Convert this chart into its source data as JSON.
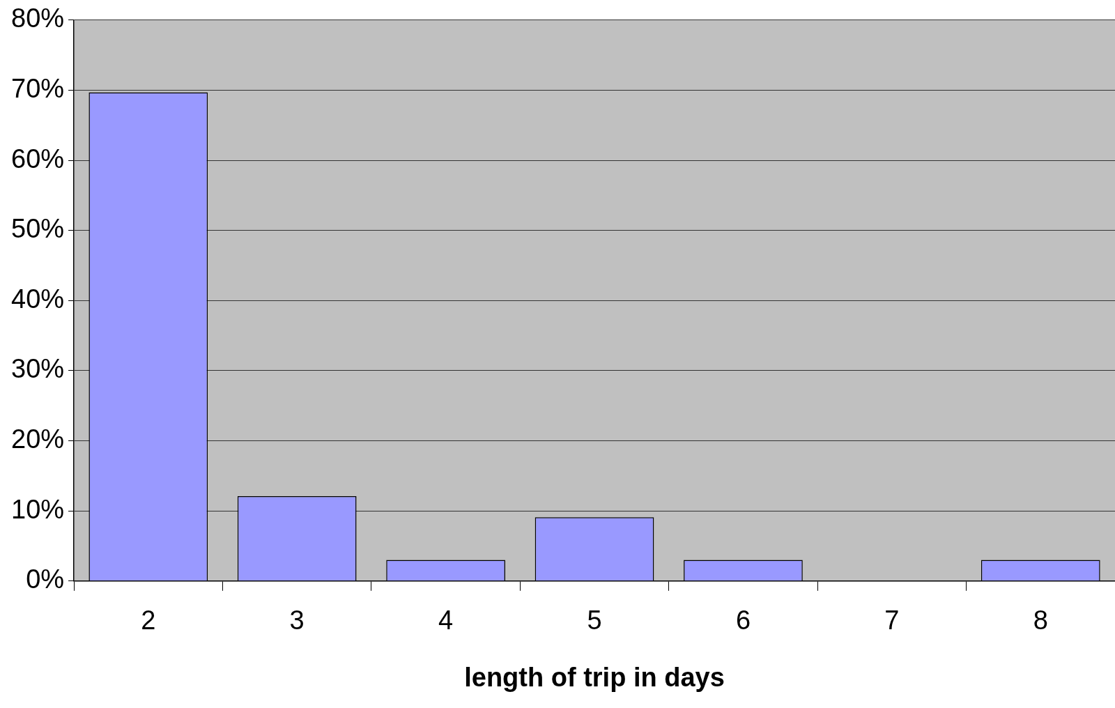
{
  "chart_data": {
    "type": "bar",
    "xlabel": "length of trip in days",
    "categories": [
      "2",
      "3",
      "4",
      "5",
      "6",
      "7",
      "8"
    ],
    "values": [
      69.7,
      12.1,
      3.0,
      9.1,
      3.0,
      0,
      3.0
    ],
    "color": "#9999ff",
    "ylim": [
      0,
      80
    ],
    "yticks": [
      {
        "value": 0,
        "label": "0%"
      },
      {
        "value": 10,
        "label": "10%"
      },
      {
        "value": 20,
        "label": "20%"
      },
      {
        "value": 30,
        "label": "30%"
      },
      {
        "value": 40,
        "label": "40%"
      },
      {
        "value": 50,
        "label": "50%"
      },
      {
        "value": 60,
        "label": "60%"
      },
      {
        "value": 70,
        "label": "70%"
      },
      {
        "value": 80,
        "label": "80%"
      }
    ],
    "grid": "y",
    "legend": false
  }
}
